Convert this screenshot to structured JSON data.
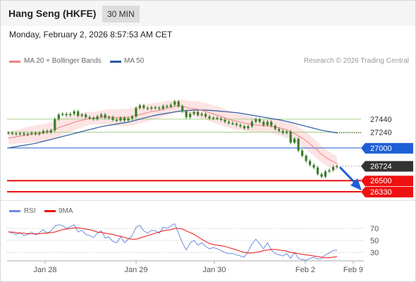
{
  "header": {
    "title": "Hang Seng (HKFE)",
    "timeframe": "30 MIN"
  },
  "datetime": "Monday, February 2, 2026 8:57:53 AM CET",
  "credit": "Research © 2026 Trading Central",
  "colors": {
    "price": "#3a7d2a",
    "ma20": "#f08080",
    "ma50": "#2c5aa0",
    "band": "#fde4e4",
    "resistance": "#a8d08d",
    "pivot": "#1f5fd6",
    "support": "#ee1111",
    "current": "#333333",
    "rsi": "#6a8ee0",
    "rsi_ma": "#ee1111"
  },
  "chart_data": [
    {
      "type": "line",
      "title": "Hang Seng (HKFE)",
      "legend": [
        {
          "name": "MA 20 + Bollinger Bands",
          "color": "#f08080"
        },
        {
          "name": "MA 50",
          "color": "#2c5aa0"
        }
      ],
      "x_ticks": [
        "Jan 28",
        "Jan 29",
        "Jan 30",
        "Feb 2",
        "Feb 9"
      ],
      "ylim": [
        26330,
        27640
      ],
      "levels": [
        {
          "label": "27440",
          "value": 27440,
          "kind": "resistance"
        },
        {
          "label": "27240",
          "value": 27240,
          "kind": "resistance"
        },
        {
          "label": "27000",
          "value": 27000,
          "kind": "pivot"
        },
        {
          "label": "26724",
          "value": 26724,
          "kind": "current"
        },
        {
          "label": "26500",
          "value": 26500,
          "kind": "support"
        },
        {
          "label": "26330",
          "value": 26330,
          "kind": "support"
        }
      ],
      "series": [
        {
          "name": "Price",
          "values": [
            27230,
            27220,
            27210,
            27225,
            27205,
            27215,
            27230,
            27210,
            27230,
            27260,
            27240,
            27270,
            27440,
            27510,
            27520,
            27500,
            27520,
            27560,
            27490,
            27510,
            27470,
            27460,
            27440,
            27480,
            27510,
            27460,
            27470,
            27430,
            27420,
            27460,
            27420,
            27450,
            27480,
            27610,
            27650,
            27610,
            27600,
            27620,
            27615,
            27600,
            27640,
            27630,
            27660,
            27710,
            27640,
            27560,
            27470,
            27520,
            27550,
            27500,
            27520,
            27480,
            27450,
            27460,
            27450,
            27430,
            27400,
            27380,
            27370,
            27350,
            27330,
            27300,
            27330,
            27400,
            27440,
            27400,
            27350,
            27400,
            27340,
            27290,
            27260,
            27230,
            27250,
            27080,
            27140,
            26960,
            26880,
            26800,
            26740,
            26700,
            26600,
            26560,
            26640,
            26660,
            26710,
            26724
          ]
        },
        {
          "name": "MA 20",
          "values": [
            27150,
            27160,
            27170,
            27180,
            27190,
            27200,
            27210,
            27215,
            27225,
            27230,
            27240,
            27255,
            27280,
            27310,
            27330,
            27350,
            27370,
            27390,
            27410,
            27420,
            27440,
            27450,
            27455,
            27460,
            27470,
            27470,
            27475,
            27470,
            27465,
            27465,
            27465,
            27470,
            27480,
            27495,
            27510,
            27525,
            27540,
            27555,
            27565,
            27575,
            27590,
            27605,
            27620,
            27635,
            27640,
            27635,
            27620,
            27605,
            27600,
            27590,
            27575,
            27560,
            27540,
            27520,
            27500,
            27480,
            27460,
            27440,
            27420,
            27410,
            27395,
            27380,
            27370,
            27360,
            27350,
            27345,
            27340,
            27340,
            27330,
            27320,
            27310,
            27295,
            27275,
            27250,
            27220,
            27185,
            27150,
            27110,
            27060,
            27010,
            26960,
            26900,
            26860,
            26820,
            26790,
            26760
          ]
        },
        {
          "name": "MA 50",
          "values": [
            27000,
            27010,
            27020,
            27030,
            27040,
            27050,
            27060,
            27070,
            27085,
            27100,
            27115,
            27130,
            27145,
            27160,
            27175,
            27190,
            27205,
            27220,
            27235,
            27250,
            27265,
            27280,
            27295,
            27310,
            27325,
            27335,
            27345,
            27355,
            27365,
            27375,
            27385,
            27395,
            27410,
            27425,
            27440,
            27455,
            27470,
            27485,
            27500,
            27510,
            27520,
            27530,
            27540,
            27550,
            27560,
            27565,
            27570,
            27575,
            27578,
            27580,
            27580,
            27578,
            27575,
            27570,
            27565,
            27560,
            27555,
            27550,
            27545,
            27540,
            27530,
            27520,
            27510,
            27500,
            27490,
            27480,
            27470,
            27460,
            27450,
            27440,
            27430,
            27420,
            27405,
            27390,
            27375,
            27360,
            27345,
            27330,
            27315,
            27300,
            27285,
            27270,
            27260,
            27250,
            27240,
            27230
          ]
        }
      ]
    },
    {
      "type": "line",
      "title": "RSI",
      "legend": [
        {
          "name": "RSI",
          "color": "#6a8ee0"
        },
        {
          "name": "9MA",
          "color": "#ee1111"
        }
      ],
      "ylim": [
        10,
        90
      ],
      "y_ticks": [
        "70",
        "50",
        "30"
      ],
      "series": [
        {
          "name": "RSI",
          "values": [
            65,
            62,
            60,
            63,
            58,
            60,
            64,
            59,
            63,
            68,
            62,
            66,
            74,
            76,
            75,
            70,
            73,
            76,
            64,
            67,
            60,
            58,
            55,
            62,
            66,
            54,
            56,
            48,
            46,
            56,
            46,
            52,
            58,
            72,
            75,
            66,
            62,
            67,
            66,
            62,
            72,
            70,
            74,
            78,
            62,
            46,
            34,
            46,
            50,
            42,
            46,
            40,
            36,
            38,
            36,
            33,
            30,
            28,
            28,
            26,
            24,
            22,
            32,
            44,
            52,
            44,
            36,
            46,
            34,
            28,
            26,
            24,
            28,
            20,
            30,
            20,
            18,
            17,
            20,
            22,
            19,
            20,
            26,
            29,
            33,
            34
          ]
        },
        {
          "name": "9MA",
          "values": [
            64,
            64,
            63,
            62,
            62,
            61,
            61,
            61,
            61,
            62,
            62,
            63,
            64,
            66,
            68,
            69,
            70,
            71,
            71,
            70,
            69,
            68,
            66,
            64,
            63,
            62,
            61,
            60,
            58,
            57,
            55,
            53,
            52,
            52,
            54,
            56,
            58,
            60,
            62,
            64,
            66,
            67,
            68,
            70,
            70,
            69,
            66,
            63,
            60,
            56,
            52,
            48,
            45,
            43,
            42,
            41,
            40,
            38,
            36,
            34,
            32,
            30,
            29,
            29,
            30,
            31,
            33,
            34,
            35,
            35,
            34,
            33,
            32,
            30,
            29,
            28,
            27,
            26,
            25,
            24,
            23,
            22,
            21,
            21,
            22,
            23
          ]
        }
      ]
    }
  ]
}
